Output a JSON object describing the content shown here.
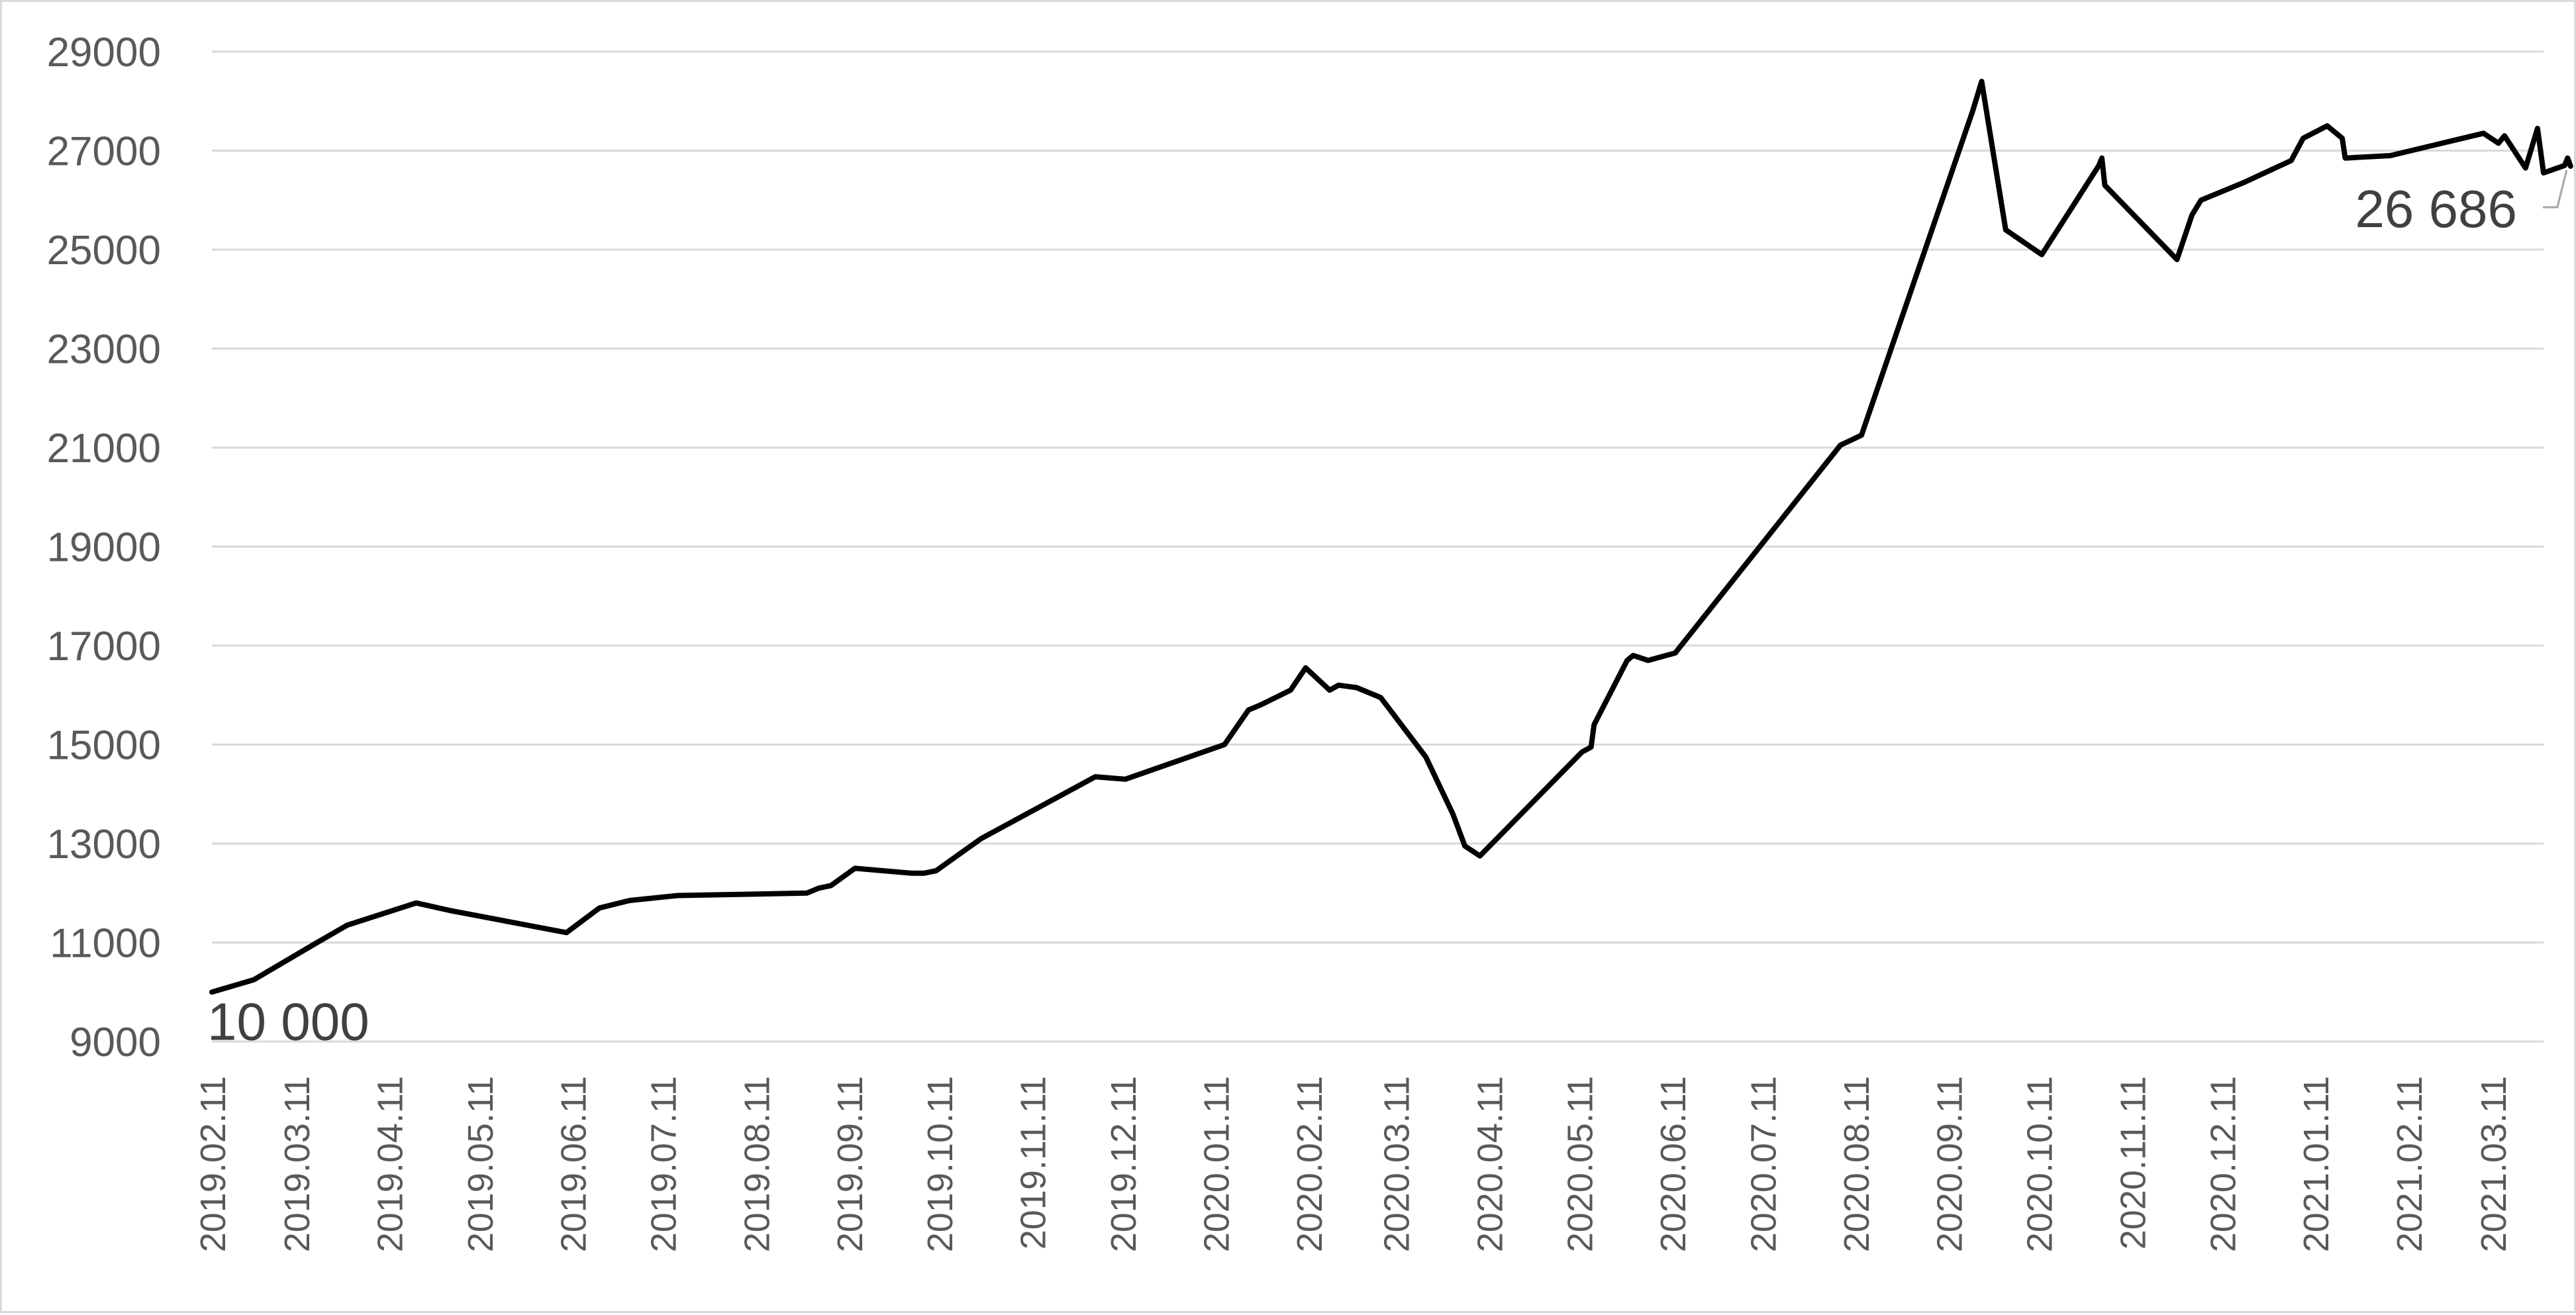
{
  "chart_data": {
    "type": "line",
    "title": "",
    "xlabel": "",
    "ylabel": "",
    "ylim": [
      9000,
      29000
    ],
    "yticks": [
      9000,
      11000,
      13000,
      15000,
      17000,
      19000,
      21000,
      23000,
      25000,
      27000,
      29000
    ],
    "xlim": [
      "2019-02-11",
      "2021-03-28"
    ],
    "xtick_labels": [
      "2019.02.11",
      "2019.03.11",
      "2019.04.11",
      "2019.05.11",
      "2019.06.11",
      "2019.07.11",
      "2019.08.11",
      "2019.09.11",
      "2019.10.11",
      "2019.11.11",
      "2019.12.11",
      "2020.01.11",
      "2020.02.11",
      "2020.03.11",
      "2020.04.11",
      "2020.05.11",
      "2020.06.11",
      "2020.07.11",
      "2020.08.11",
      "2020.09.11",
      "2020.10.11",
      "2020.11.11",
      "2020.12.11",
      "2021.01.11",
      "2021.02.11",
      "2021.03.11"
    ],
    "xtick_dates": [
      "2019-02-11",
      "2019-03-11",
      "2019-04-11",
      "2019-05-11",
      "2019-06-11",
      "2019-07-11",
      "2019-08-11",
      "2019-09-11",
      "2019-10-11",
      "2019-11-11",
      "2019-12-11",
      "2020-01-11",
      "2020-02-11",
      "2020-03-11",
      "2020-04-11",
      "2020-05-11",
      "2020-06-11",
      "2020-07-11",
      "2020-08-11",
      "2020-09-11",
      "2020-10-11",
      "2020-11-11",
      "2020-12-11",
      "2021-01-11",
      "2021-02-11",
      "2021-03-11"
    ],
    "grid": "horizontal",
    "legend": "none",
    "series": [
      {
        "color": "#000000",
        "points": [
          [
            "2019-02-11",
            10000
          ],
          [
            "2019-02-25",
            10250
          ],
          [
            "2019-03-18",
            11000
          ],
          [
            "2019-03-28",
            11350
          ],
          [
            "2019-04-20",
            11800
          ],
          [
            "2019-05-01",
            11650
          ],
          [
            "2019-06-09",
            11200
          ],
          [
            "2019-06-20",
            11700
          ],
          [
            "2019-06-30",
            11850
          ],
          [
            "2019-07-16",
            11950
          ],
          [
            "2019-08-28",
            12000
          ],
          [
            "2019-09-01",
            12100
          ],
          [
            "2019-09-05",
            12150
          ],
          [
            "2019-09-13",
            12500
          ],
          [
            "2019-10-02",
            12400
          ],
          [
            "2019-10-06",
            12400
          ],
          [
            "2019-10-10",
            12450
          ],
          [
            "2019-10-25",
            13100
          ],
          [
            "2019-12-02",
            14350
          ],
          [
            "2019-12-12",
            14300
          ],
          [
            "2020-01-14",
            15000
          ],
          [
            "2020-01-22",
            15700
          ],
          [
            "2020-01-26",
            15800
          ],
          [
            "2020-02-05",
            16100
          ],
          [
            "2020-02-10",
            16550
          ],
          [
            "2020-02-18",
            16100
          ],
          [
            "2020-02-21",
            16200
          ],
          [
            "2020-02-27",
            16150
          ],
          [
            "2020-03-06",
            15950
          ],
          [
            "2020-03-21",
            14750
          ],
          [
            "2020-03-30",
            13600
          ],
          [
            "2020-04-03",
            12950
          ],
          [
            "2020-04-08",
            12750
          ],
          [
            "2020-05-12",
            14850
          ],
          [
            "2020-05-15",
            14950
          ],
          [
            "2020-05-16",
            15400
          ],
          [
            "2020-05-27",
            16700
          ],
          [
            "2020-05-29",
            16800
          ],
          [
            "2020-06-03",
            16700
          ],
          [
            "2020-06-12",
            16850
          ],
          [
            "2020-08-06",
            21050
          ],
          [
            "2020-08-13",
            21250
          ],
          [
            "2020-09-19",
            27800
          ],
          [
            "2020-09-22",
            28400
          ],
          [
            "2020-09-30",
            25400
          ],
          [
            "2020-10-12",
            24900
          ],
          [
            "2020-10-31",
            26700
          ],
          [
            "2020-11-01",
            26850
          ],
          [
            "2020-11-02",
            26300
          ],
          [
            "2020-11-26",
            24800
          ],
          [
            "2020-12-01",
            25700
          ],
          [
            "2020-12-04",
            26000
          ],
          [
            "2020-12-18",
            26350
          ],
          [
            "2021-01-03",
            26800
          ],
          [
            "2021-01-07",
            27250
          ],
          [
            "2021-01-15",
            27500
          ],
          [
            "2021-01-20",
            27250
          ],
          [
            "2021-01-21",
            26850
          ],
          [
            "2021-02-05",
            26900
          ],
          [
            "2021-03-08",
            27350
          ],
          [
            "2021-03-13",
            27150
          ],
          [
            "2021-03-15",
            27300
          ],
          [
            "2021-03-22",
            26650
          ],
          [
            "2021-03-26",
            27450
          ],
          [
            "2021-03-28",
            26550
          ],
          [
            "2021-04-04",
            26700
          ],
          [
            "2021-04-05",
            26850
          ],
          [
            "2021-04-06",
            26686
          ]
        ]
      }
    ],
    "data_labels": [
      {
        "text": "10 000",
        "date": "2019-02-11",
        "value": 10000
      },
      {
        "text": "26 686",
        "date": "2021-04-06",
        "value": 26686
      }
    ]
  }
}
